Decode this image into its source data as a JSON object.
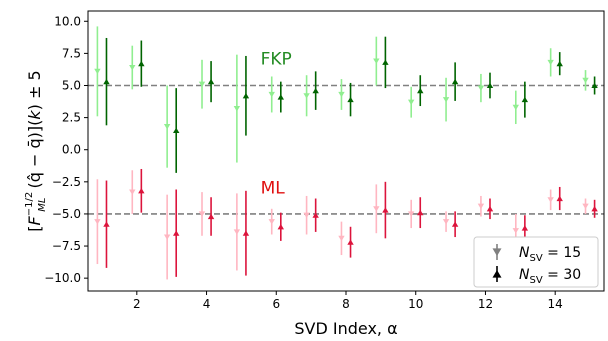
{
  "chart_data": {
    "type": "scatter",
    "xlabel": "SVD Index, α",
    "ylabel": "[F_ML^{-1/2} (q̂ − q̄)](k) ± 5",
    "xlim": [
      0.6,
      15.4
    ],
    "ylim": [
      -11.0,
      10.8
    ],
    "xticks": [
      2,
      4,
      6,
      8,
      10,
      12,
      14
    ],
    "yticks": [
      -10.0,
      -7.5,
      -5.0,
      -2.5,
      0.0,
      2.5,
      5.0,
      7.5,
      10.0
    ],
    "ytick_labels": [
      "−10.0",
      "−7.5",
      "−5.0",
      "−2.5",
      "0.0",
      "2.5",
      "5.0",
      "7.5",
      "10.0"
    ],
    "reference_lines": [
      5.0,
      -5.0
    ],
    "annotations": [
      {
        "text": "FKP",
        "x": 5.55,
        "y": 7.1,
        "color": "#228b22"
      },
      {
        "text": "ML",
        "x": 5.55,
        "y": -2.95,
        "color": "#e01010"
      }
    ],
    "legend": {
      "placement": "bottom-right",
      "entries": [
        {
          "label": "N_SV = 15",
          "marker": "down-triangle",
          "color": "#808080"
        },
        {
          "label": "N_SV = 30",
          "marker": "up-triangle",
          "color": "#000000"
        }
      ]
    },
    "series": [
      {
        "name": "FKP, N_SV = 15",
        "marker": "down-triangle",
        "color": "#90ee90",
        "x": [
          0.87,
          1.87,
          2.87,
          3.87,
          4.87,
          5.87,
          6.87,
          7.87,
          8.87,
          9.87,
          10.87,
          11.87,
          12.87,
          13.87,
          14.87
        ],
        "y": [
          6.1,
          6.4,
          1.8,
          5.1,
          3.2,
          4.3,
          4.2,
          4.3,
          6.9,
          3.7,
          3.9,
          4.8,
          3.3,
          6.8,
          5.4
        ],
        "err": [
          3.5,
          1.7,
          3.2,
          1.9,
          4.2,
          1.4,
          1.6,
          1.2,
          1.9,
          1.2,
          1.7,
          1.1,
          1.3,
          1.1,
          0.8
        ]
      },
      {
        "name": "FKP, N_SV = 30",
        "marker": "up-triangle",
        "color": "#006400",
        "x": [
          1.13,
          2.13,
          3.13,
          4.13,
          5.13,
          6.13,
          7.13,
          8.13,
          9.13,
          10.13,
          11.13,
          12.13,
          13.13,
          14.13,
          15.13
        ],
        "y": [
          5.3,
          6.7,
          1.5,
          5.3,
          4.2,
          4.1,
          4.6,
          3.9,
          6.8,
          4.6,
          5.3,
          5.0,
          3.9,
          6.7,
          5.0
        ],
        "err": [
          3.4,
          1.8,
          3.3,
          1.6,
          3.1,
          1.2,
          1.5,
          1.3,
          2.0,
          1.2,
          1.5,
          1.0,
          1.4,
          0.9,
          0.7
        ]
      },
      {
        "name": "ML, N_SV = 15",
        "marker": "down-triangle",
        "color": "#ffb6c1",
        "x": [
          0.87,
          1.87,
          2.87,
          3.87,
          4.87,
          5.87,
          6.87,
          7.87,
          8.87,
          9.87,
          10.87,
          11.87,
          12.87,
          13.87,
          14.87
        ],
        "y": [
          -5.6,
          -3.3,
          -6.8,
          -5.0,
          -6.4,
          -5.6,
          -5.1,
          -6.9,
          -4.6,
          -5.0,
          -5.6,
          -4.4,
          -6.3,
          -3.9,
          -4.4
        ],
        "err": [
          3.3,
          1.7,
          3.3,
          1.7,
          3.0,
          1.0,
          1.5,
          1.3,
          1.9,
          1.1,
          0.8,
          0.8,
          1.3,
          0.8,
          0.6
        ]
      },
      {
        "name": "ML, N_SV = 30",
        "marker": "up-triangle",
        "color": "#dc143c",
        "x": [
          1.13,
          2.13,
          3.13,
          4.13,
          5.13,
          6.13,
          7.13,
          8.13,
          9.13,
          10.13,
          11.13,
          12.13,
          13.13,
          14.13,
          15.13
        ],
        "y": [
          -5.8,
          -3.2,
          -6.5,
          -5.2,
          -6.5,
          -6.0,
          -5.1,
          -7.2,
          -4.7,
          -4.9,
          -5.8,
          -4.6,
          -6.1,
          -3.8,
          -4.6
        ],
        "err": [
          3.4,
          1.7,
          3.4,
          1.5,
          3.3,
          1.1,
          1.3,
          1.2,
          2.2,
          1.2,
          1.0,
          0.8,
          1.0,
          0.9,
          0.7
        ]
      }
    ]
  }
}
